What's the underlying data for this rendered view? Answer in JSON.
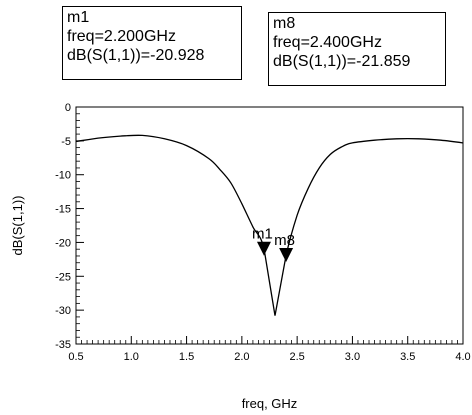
{
  "markers_readout": [
    {
      "name": "m1",
      "freq_text": "freq=2.200GHz",
      "value_text": "dB(S(1,1))=-20.928"
    },
    {
      "name": "m8",
      "freq_text": "freq=2.400GHz",
      "value_text": "dB(S(1,1))=-21.859"
    }
  ],
  "chart_data": {
    "type": "line",
    "title": "",
    "xlabel": "freq, GHz",
    "ylabel": "dB(S(1,1))",
    "xlim": [
      0.5,
      4.0
    ],
    "ylim": [
      -35,
      0
    ],
    "x_ticks": [
      "0.5",
      "1.0",
      "1.5",
      "2.0",
      "2.5",
      "3.0",
      "3.5",
      "4.0"
    ],
    "y_ticks": [
      "0",
      "-5",
      "-10",
      "-15",
      "-20",
      "-25",
      "-30",
      "-35"
    ],
    "x_tick_values": [
      0.5,
      1.0,
      1.5,
      2.0,
      2.5,
      3.0,
      3.5,
      4.0
    ],
    "y_tick_values": [
      0,
      -5,
      -10,
      -15,
      -20,
      -25,
      -30,
      -35
    ],
    "grid": false,
    "line_color": "#000000",
    "series": [
      {
        "x": [
          0.5,
          0.7,
          0.9,
          1.1,
          1.3,
          1.5,
          1.7,
          1.8,
          1.9,
          2.0,
          2.1,
          2.2,
          2.3,
          2.4,
          2.5,
          2.6,
          2.7,
          2.8,
          2.9,
          3.0,
          3.2,
          3.4,
          3.6,
          3.8,
          4.0
        ],
        "y": [
          -5.1,
          -4.6,
          -4.3,
          -4.2,
          -4.7,
          -5.7,
          -7.6,
          -9.2,
          -11.2,
          -14.3,
          -17.7,
          -20.9,
          -30.8,
          -21.9,
          -16.0,
          -12.0,
          -9.0,
          -7.0,
          -5.9,
          -5.3,
          -4.9,
          -4.7,
          -4.7,
          -4.9,
          -5.3
        ]
      }
    ],
    "markers": [
      {
        "label": "m1",
        "x": 2.2,
        "y": -20.928
      },
      {
        "label": "m8",
        "x": 2.4,
        "y": -21.859
      }
    ]
  }
}
